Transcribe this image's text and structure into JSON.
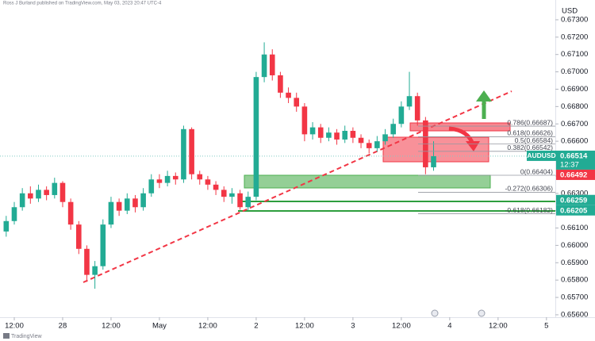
{
  "header": {
    "attribution": "Ross J Burland published on TradingView.com, May 03, 2023 20:47 UTC-4",
    "currency": "USD"
  },
  "chart_data": {
    "type": "candlestick",
    "symbol": "AUDUSD",
    "countdown": "12:37",
    "up_color": "#22ab94",
    "down_color": "#f23645",
    "x": [
      10,
      12,
      14,
      16,
      18,
      20,
      22,
      24,
      26,
      28,
      30,
      32,
      34,
      36,
      38,
      40,
      42,
      44,
      46,
      48,
      50,
      52,
      54,
      56,
      58,
      60,
      62,
      64,
      66,
      68,
      70,
      72,
      74,
      76,
      78,
      80,
      82,
      84,
      86,
      88,
      90,
      92,
      94,
      96,
      98,
      100,
      102,
      104,
      106,
      108,
      110,
      112,
      114,
      116
    ],
    "open": [
      0.6608,
      0.6614,
      0.6622,
      0.663,
      0.6627,
      0.6632,
      0.6629,
      0.6636,
      0.6625,
      0.6612,
      0.6598,
      0.6583,
      0.6588,
      0.6612,
      0.6625,
      0.662,
      0.6627,
      0.6622,
      0.663,
      0.6638,
      0.6636,
      0.664,
      0.6638,
      0.6667,
      0.6641,
      0.6638,
      0.6635,
      0.6632,
      0.6628,
      0.663,
      0.6622,
      0.6628,
      0.6697,
      0.671,
      0.6698,
      0.6688,
      0.6685,
      0.668,
      0.6664,
      0.6668,
      0.6662,
      0.6665,
      0.6661,
      0.6666,
      0.6662,
      0.6659,
      0.6656,
      0.666,
      0.6664,
      0.667,
      0.668,
      0.6686,
      0.6672,
      0.6645
    ],
    "high": [
      0.6617,
      0.6625,
      0.6633,
      0.6634,
      0.6635,
      0.6634,
      0.6639,
      0.6637,
      0.6627,
      0.6614,
      0.66,
      0.6591,
      0.6615,
      0.6628,
      0.6627,
      0.663,
      0.6629,
      0.6633,
      0.6641,
      0.6641,
      0.6643,
      0.6642,
      0.6669,
      0.6668,
      0.6643,
      0.664,
      0.6637,
      0.6634,
      0.6633,
      0.6632,
      0.6631,
      0.67,
      0.6717,
      0.6713,
      0.67,
      0.6691,
      0.6688,
      0.6682,
      0.6671,
      0.667,
      0.6668,
      0.6667,
      0.6669,
      0.6668,
      0.6664,
      0.6661,
      0.6663,
      0.6667,
      0.6673,
      0.6683,
      0.67,
      0.6688,
      0.6674,
      0.666
    ],
    "low": [
      0.6605,
      0.6612,
      0.662,
      0.6624,
      0.6625,
      0.6626,
      0.6627,
      0.6622,
      0.6609,
      0.6595,
      0.6579,
      0.6575,
      0.6586,
      0.661,
      0.6617,
      0.6618,
      0.6619,
      0.662,
      0.6628,
      0.6633,
      0.6634,
      0.6635,
      0.6636,
      0.6638,
      0.6635,
      0.6632,
      0.6629,
      0.6625,
      0.6624,
      0.66205,
      0.662,
      0.6626,
      0.6694,
      0.6695,
      0.6685,
      0.6682,
      0.6677,
      0.666,
      0.6661,
      0.6659,
      0.666,
      0.6658,
      0.6659,
      0.6659,
      0.6656,
      0.6653,
      0.6654,
      0.6658,
      0.6662,
      0.6668,
      0.6678,
      0.6669,
      0.6641,
      0.6643
    ],
    "close": [
      0.6614,
      0.6622,
      0.663,
      0.6627,
      0.6632,
      0.6629,
      0.6636,
      0.6625,
      0.6612,
      0.6598,
      0.6583,
      0.6588,
      0.6612,
      0.6625,
      0.662,
      0.6627,
      0.6622,
      0.663,
      0.6638,
      0.6636,
      0.664,
      0.6638,
      0.6667,
      0.6641,
      0.6638,
      0.6635,
      0.6632,
      0.6628,
      0.663,
      0.6622,
      0.6628,
      0.6697,
      0.671,
      0.6698,
      0.6688,
      0.6685,
      0.668,
      0.6664,
      0.6668,
      0.6662,
      0.6665,
      0.6661,
      0.6666,
      0.6662,
      0.6659,
      0.6656,
      0.666,
      0.6664,
      0.667,
      0.668,
      0.6686,
      0.6672,
      0.6645,
      0.66514
    ],
    "xlim": [
      8.46,
      146.2
    ],
    "xticks": [
      {
        "value": 12,
        "label": "12:00"
      },
      {
        "value": 24,
        "label": "28"
      },
      {
        "value": 36,
        "label": "12:00"
      },
      {
        "value": 48,
        "label": "May"
      },
      {
        "value": 60,
        "label": "12:00"
      },
      {
        "value": 72,
        "label": "2"
      },
      {
        "value": 84,
        "label": "12:00"
      },
      {
        "value": 96,
        "label": "3"
      },
      {
        "value": 108,
        "label": "12:00"
      },
      {
        "value": 120,
        "label": "4"
      },
      {
        "value": 132,
        "label": "12:00"
      },
      {
        "value": 144,
        "label": "5"
      }
    ],
    "ylim": [
      0.65586,
      0.67414
    ],
    "yticks": [
      {
        "value": 0.673,
        "label": "0.67300"
      },
      {
        "value": 0.672,
        "label": "0.67200"
      },
      {
        "value": 0.671,
        "label": "0.67100"
      },
      {
        "value": 0.67,
        "label": "0.67000"
      },
      {
        "value": 0.669,
        "label": "0.66900"
      },
      {
        "value": 0.668,
        "label": "0.66800"
      },
      {
        "value": 0.667,
        "label": "0.66700"
      },
      {
        "value": 0.666,
        "label": "0.66600"
      },
      {
        "value": 0.665,
        "label": "0.66500"
      },
      {
        "value": 0.664,
        "label": "0.66400"
      },
      {
        "value": 0.663,
        "label": "0.66300"
      },
      {
        "value": 0.662,
        "label": "0.66200"
      },
      {
        "value": 0.661,
        "label": "0.66100"
      },
      {
        "value": 0.66,
        "label": "0.66000"
      },
      {
        "value": 0.659,
        "label": "0.65900"
      },
      {
        "value": 0.658,
        "label": "0.65800"
      },
      {
        "value": 0.657,
        "label": "0.65700"
      },
      {
        "value": 0.656,
        "label": "0.65600"
      }
    ],
    "fib_levels": [
      {
        "value": 0.66687,
        "label": "0.786(0.66687)"
      },
      {
        "value": 0.66626,
        "label": "0.618(0.66626)"
      },
      {
        "value": 0.66584,
        "label": "0.5(0.66584)"
      },
      {
        "value": 0.66542,
        "label": "0.382(0.66542)"
      },
      {
        "value": 0.66404,
        "label": "0(0.66404)"
      },
      {
        "value": 0.66306,
        "label": "-0.272(0.66306)"
      },
      {
        "value": 0.66182,
        "label": "-0.618(0.66182)"
      }
    ],
    "price_labels": [
      {
        "value": 0.66492,
        "color": "#f23645"
      },
      {
        "value": 0.66259,
        "color": "#22ab94"
      },
      {
        "value": 0.66205,
        "color": "#22ab94"
      }
    ]
  },
  "footer": {
    "logo": "TradingView"
  }
}
